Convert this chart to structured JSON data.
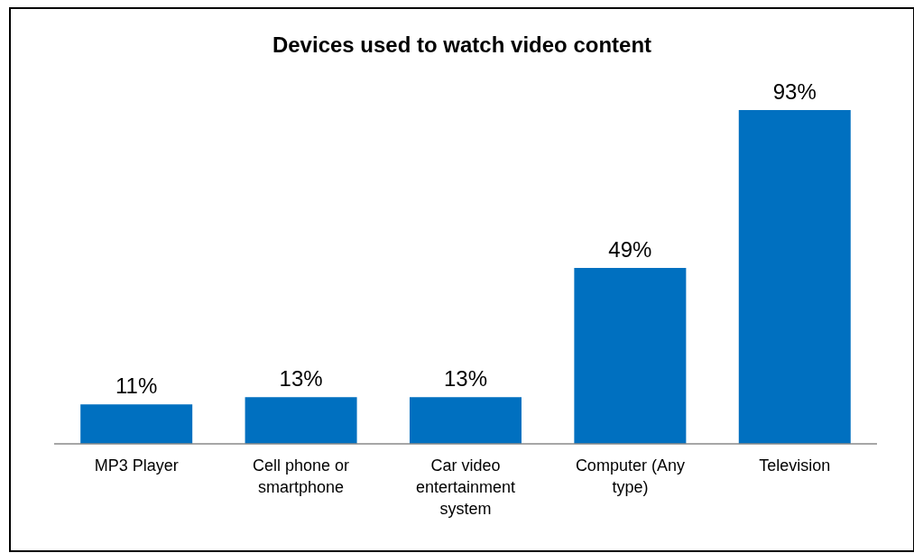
{
  "chart_data": {
    "type": "bar",
    "title": "Devices used to watch video content",
    "categories": [
      "MP3 Player",
      "Cell phone or smartphone",
      "Car video entertainment system",
      "Computer (Any type)",
      "Television"
    ],
    "values": [
      11,
      13,
      13,
      49,
      93
    ],
    "color": "#0070c0",
    "data_labels": true,
    "value_labels": [
      "11%",
      "13%",
      "13%",
      "49%",
      "93%"
    ],
    "grid": false,
    "legend": false
  }
}
